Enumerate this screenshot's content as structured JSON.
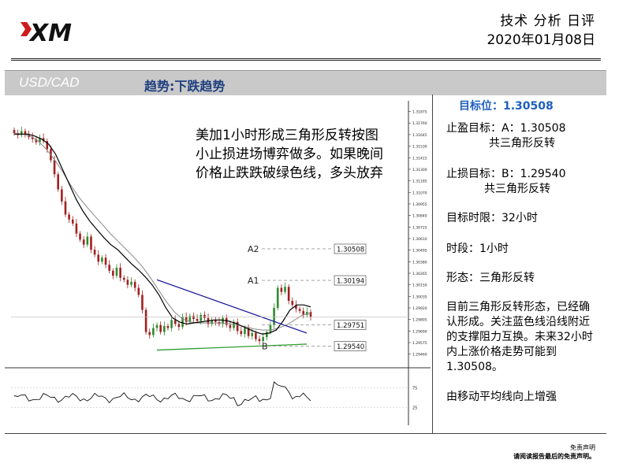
{
  "header": {
    "logo_text": "XM",
    "report_title": "技术 分析 日评",
    "report_date": "2020年01月08日"
  },
  "band": {
    "pair": "USD/CAD",
    "trend": "趋势:下跌趋势"
  },
  "annotation": "美加1小时形成三角形反转按图小止损进场博弈做多。如果晚间价格止跌跌破绿色线，多头放弃",
  "right_panel": {
    "target_price": "目标位：1.30508",
    "take_profit_line1": "止盈目标：A：1.30508",
    "take_profit_line2": "共三角形反转",
    "stop_loss_line1": "止损目标：B：1.29540",
    "stop_loss_line2": "共三角形反转",
    "time_limit": "目标时限：32小时",
    "timeframe": "时段：1小时",
    "pattern": "形态：三角形反转",
    "analysis": [
      "目前三角形反转形态，已经确",
      "认形成。关注蓝色线沿线附近",
      "的支撑阻力互换。未来32小时",
      "内上涨价格走势可能到",
      "1.30508。"
    ],
    "ma_note": "由移动平均线向上增强"
  },
  "disclaimer": {
    "line1": "免责声明",
    "line2": "请阅读报告最后的免责声明。"
  },
  "chart_data": {
    "type": "line",
    "series_kind": "candlestick_with_moving_averages",
    "timeframe": "1H",
    "x_count": 100,
    "ylim": [
      1.2934,
      1.3195
    ],
    "y_ticks": [
      "1.31875",
      "1.31760",
      "1.31645",
      "1.31530",
      "1.31415",
      "1.31300",
      "1.31185",
      "1.31070",
      "1.30955",
      "1.30840",
      "1.30725",
      "1.30610",
      "1.30495",
      "1.30380",
      "1.30265",
      "1.30150",
      "1.30035",
      "1.29920",
      "1.29805",
      "1.29690",
      "1.29575",
      "1.29460"
    ],
    "close": [
      1.3166,
      1.3164,
      1.3168,
      1.3165,
      1.3162,
      1.316,
      1.3157,
      1.3161,
      1.3158,
      1.315,
      1.3139,
      1.3125,
      1.311,
      1.3098,
      1.3085,
      1.308,
      1.3076,
      1.3066,
      1.306,
      1.3055,
      1.3063,
      1.305,
      1.3045,
      1.3038,
      1.3042,
      1.3035,
      1.3029,
      1.3024,
      1.3032,
      1.3022,
      1.302,
      1.3015,
      1.3018,
      1.3012,
      1.3005,
      1.299,
      1.2968,
      1.2965,
      1.2972,
      1.2975,
      1.2968,
      1.2974,
      1.2972,
      1.298,
      1.2976,
      1.2973,
      1.2983,
      1.2978,
      1.2984,
      1.2981,
      1.2979,
      1.2985,
      1.2982,
      1.2976,
      1.298,
      1.2978,
      1.2976,
      1.2982,
      1.2975,
      1.2972,
      1.2978,
      1.2969,
      1.2966,
      1.2972,
      1.2964,
      1.2967,
      1.2961,
      1.2959,
      1.2963,
      1.2968,
      1.2975,
      1.2992,
      1.3012,
      1.3008,
      1.3013,
      1.2999,
      1.2995,
      1.2991,
      1.2989,
      1.2985,
      1.2988,
      1.2983
    ],
    "ma_fast": [
      1.3165,
      1.3165,
      1.3165,
      1.3163,
      1.316,
      1.3155,
      1.3145,
      1.313,
      1.3115,
      1.31,
      1.3088,
      1.3078,
      1.307,
      1.3062,
      1.3055,
      1.305,
      1.3043,
      1.3036,
      1.303,
      1.3023,
      1.3015,
      1.3005,
      1.2992,
      1.2982,
      1.2978,
      1.2976,
      1.2977,
      1.2978,
      1.2979,
      1.298,
      1.298,
      1.2979,
      1.2977,
      1.2974,
      1.2971,
      1.2968,
      1.2966,
      1.2967,
      1.297,
      1.2979,
      1.299,
      1.2995,
      1.2995,
      1.2993
    ],
    "ma_slow": [
      1.3166,
      1.3165,
      1.3163,
      1.3158,
      1.315,
      1.314,
      1.3128,
      1.3115,
      1.3103,
      1.3093,
      1.3084,
      1.3075,
      1.3066,
      1.3058,
      1.305,
      1.3042,
      1.3033,
      1.3022,
      1.301,
      1.2998,
      1.2988,
      1.2981,
      1.2978,
      1.2977,
      1.2977,
      1.2977,
      1.2977,
      1.2976,
      1.2975,
      1.2973,
      1.2971,
      1.297,
      1.297,
      1.2972,
      1.2975,
      1.298,
      1.2985,
      1.2987
    ],
    "oscillator": {
      "levels": [
        "75",
        "25"
      ],
      "ylim": [
        0,
        100
      ]
    },
    "annotations": [
      {
        "label": "A2",
        "price": "1.30508",
        "y": 1.30508
      },
      {
        "label": "A1",
        "price": "1.30194",
        "y": 1.30194
      },
      {
        "label": "",
        "price": "1.29751",
        "y": 1.29751
      },
      {
        "label": "B",
        "price": "1.29540",
        "y": 1.2954
      }
    ],
    "trendlines": [
      {
        "color": "#1f1f9f",
        "from": [
          0.37,
          1.302
        ],
        "to": [
          0.75,
          1.2967
        ]
      },
      {
        "color": "#2e9e2e",
        "from": [
          0.37,
          1.295
        ],
        "to": [
          0.75,
          1.2956
        ]
      }
    ],
    "colors": {
      "up": "#2e8b2e",
      "down": "#a02020",
      "ma_fast": "#000000",
      "ma_slow": "#888888",
      "blue_line": "#1f1f9f",
      "green_line": "#2e9e2e"
    }
  }
}
